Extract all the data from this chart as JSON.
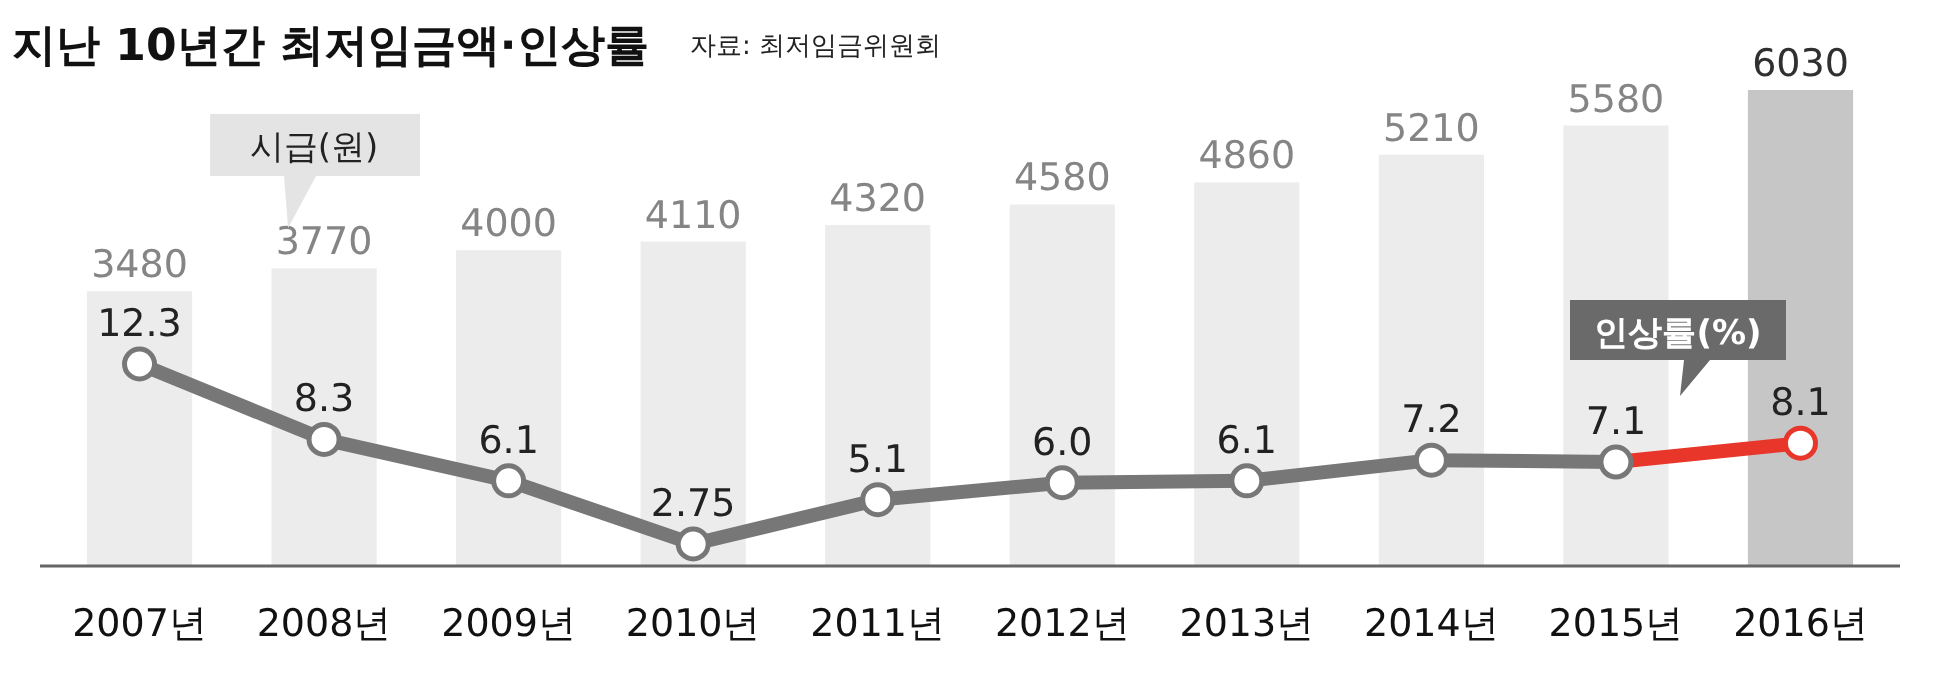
{
  "chart_data": {
    "type": "bar",
    "title": "지난 10년간 최저임금액·인상률",
    "annotations": [
      "자료: 최저임금위원회"
    ],
    "categories": [
      "2007년",
      "2008년",
      "2009년",
      "2010년",
      "2011년",
      "2012년",
      "2013년",
      "2014년",
      "2015년",
      "2016년"
    ],
    "data_labels": true,
    "tick_labels": "x",
    "series": [
      {
        "name": "시급(원)",
        "values": [
          3480,
          3770,
          4000,
          4110,
          4320,
          4580,
          4860,
          5210,
          5580,
          6030
        ],
        "colors": [
          "#ececec",
          "#ececec",
          "#ececec",
          "#ececec",
          "#ececec",
          "#ececec",
          "#ececec",
          "#ececec",
          "#ececec",
          "#c6c6c6"
        ]
      },
      {
        "type": "line",
        "axis": "y2",
        "color": "#777777",
        "marker": "circle",
        "values": [
          12.3,
          8.3,
          6.1,
          2.75,
          5.1,
          6.0,
          6.1,
          7.2,
          7.1,
          null
        ],
        "value_labels": [
          "12.3",
          "8.3",
          "6.1",
          "2.75",
          "5.1",
          "6.0",
          "6.1",
          "7.2",
          "7.1",
          null
        ]
      },
      {
        "type": "line",
        "axis": "y2",
        "name": "인상률(%)",
        "color": "#e8362a",
        "marker": "circle",
        "values": [
          null,
          null,
          null,
          null,
          null,
          null,
          null,
          null,
          null,
          8.1
        ]
      }
    ]
  }
}
